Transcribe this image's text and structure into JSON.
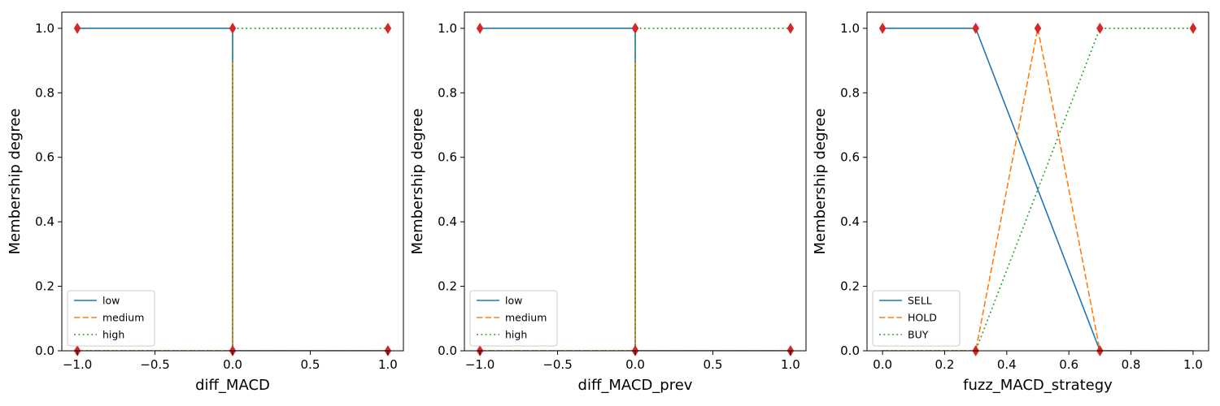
{
  "chart_data": [
    {
      "type": "line",
      "title": "",
      "xlabel": "diff_MACD",
      "ylabel": "Membership degree",
      "xlim": [
        -1.1,
        1.1
      ],
      "ylim": [
        0.0,
        1.05
      ],
      "xticks": [
        -1.0,
        -0.5,
        0.0,
        0.5,
        1.0
      ],
      "xtick_labels": [
        "−1.0",
        "−0.5",
        "0.0",
        "0.5",
        "1.0"
      ],
      "yticks": [
        0.0,
        0.2,
        0.4,
        0.6,
        0.8,
        1.0
      ],
      "ytick_labels": [
        "0.0",
        "0.2",
        "0.4",
        "0.6",
        "0.8",
        "1.0"
      ],
      "grid": false,
      "legend_position": "lower-left",
      "series": [
        {
          "name": "low",
          "style": "solid",
          "color": "#1f77b4",
          "x": [
            -1.0,
            0.0,
            0.0,
            1.0
          ],
          "y": [
            1.0,
            1.0,
            0.0,
            0.0
          ]
        },
        {
          "name": "medium",
          "style": "dashed",
          "color": "#ff7f0e",
          "x": [
            -1.0,
            0.0,
            0.0,
            0.0,
            1.0
          ],
          "y": [
            0.0,
            0.0,
            0.9,
            0.0,
            0.0
          ]
        },
        {
          "name": "high",
          "style": "dotted",
          "color": "#2ca02c",
          "x": [
            -1.0,
            0.0,
            0.0,
            1.0
          ],
          "y": [
            0.0,
            0.0,
            1.0,
            1.0
          ]
        }
      ],
      "markers": {
        "color": "#d62728",
        "shape": "diamond",
        "x": [
          -1.0,
          0.0,
          1.0,
          -1.0,
          0.0,
          1.0
        ],
        "y": [
          1.0,
          1.0,
          1.0,
          0.0,
          0.0,
          0.0
        ]
      }
    },
    {
      "type": "line",
      "title": "",
      "xlabel": "diff_MACD_prev",
      "ylabel": "Membership degree",
      "xlim": [
        -1.1,
        1.1
      ],
      "ylim": [
        0.0,
        1.05
      ],
      "xticks": [
        -1.0,
        -0.5,
        0.0,
        0.5,
        1.0
      ],
      "xtick_labels": [
        "−1.0",
        "−0.5",
        "0.0",
        "0.5",
        "1.0"
      ],
      "yticks": [
        0.0,
        0.2,
        0.4,
        0.6,
        0.8,
        1.0
      ],
      "ytick_labels": [
        "0.0",
        "0.2",
        "0.4",
        "0.6",
        "0.8",
        "1.0"
      ],
      "grid": false,
      "legend_position": "lower-left",
      "series": [
        {
          "name": "low",
          "style": "solid",
          "color": "#1f77b4",
          "x": [
            -1.0,
            0.0,
            0.0,
            1.0
          ],
          "y": [
            1.0,
            1.0,
            0.0,
            0.0
          ]
        },
        {
          "name": "medium",
          "style": "dashed",
          "color": "#ff7f0e",
          "x": [
            -1.0,
            0.0,
            0.0,
            0.0,
            1.0
          ],
          "y": [
            0.0,
            0.0,
            0.9,
            0.0,
            0.0
          ]
        },
        {
          "name": "high",
          "style": "dotted",
          "color": "#2ca02c",
          "x": [
            -1.0,
            0.0,
            0.0,
            1.0
          ],
          "y": [
            0.0,
            0.0,
            1.0,
            1.0
          ]
        }
      ],
      "markers": {
        "color": "#d62728",
        "shape": "diamond",
        "x": [
          -1.0,
          0.0,
          1.0,
          -1.0,
          0.0,
          1.0
        ],
        "y": [
          1.0,
          1.0,
          1.0,
          0.0,
          0.0,
          0.0
        ]
      }
    },
    {
      "type": "line",
      "title": "",
      "xlabel": "fuzz_MACD_strategy",
      "ylabel": "Membership degree",
      "xlim": [
        -0.05,
        1.05
      ],
      "ylim": [
        0.0,
        1.05
      ],
      "xticks": [
        0.0,
        0.2,
        0.4,
        0.6,
        0.8,
        1.0
      ],
      "xtick_labels": [
        "0.0",
        "0.2",
        "0.4",
        "0.6",
        "0.8",
        "1.0"
      ],
      "yticks": [
        0.0,
        0.2,
        0.4,
        0.6,
        0.8,
        1.0
      ],
      "ytick_labels": [
        "0.0",
        "0.2",
        "0.4",
        "0.6",
        "0.8",
        "1.0"
      ],
      "grid": false,
      "legend_position": "lower-left",
      "series": [
        {
          "name": "SELL",
          "style": "solid",
          "color": "#1f77b4",
          "x": [
            0.0,
            0.3,
            0.7,
            1.0
          ],
          "y": [
            1.0,
            1.0,
            0.0,
            0.0
          ]
        },
        {
          "name": "HOLD",
          "style": "dashed",
          "color": "#ff7f0e",
          "x": [
            0.0,
            0.3,
            0.5,
            0.7,
            1.0
          ],
          "y": [
            0.0,
            0.0,
            1.0,
            0.0,
            0.0
          ]
        },
        {
          "name": "BUY",
          "style": "dotted",
          "color": "#2ca02c",
          "x": [
            0.0,
            0.3,
            0.7,
            1.0
          ],
          "y": [
            0.0,
            0.0,
            1.0,
            1.0
          ]
        }
      ],
      "markers": {
        "color": "#d62728",
        "shape": "diamond",
        "x": [
          0.0,
          0.3,
          0.5,
          0.7,
          1.0,
          0.3,
          0.7
        ],
        "y": [
          1.0,
          1.0,
          1.0,
          1.0,
          1.0,
          0.0,
          0.0
        ]
      }
    }
  ]
}
